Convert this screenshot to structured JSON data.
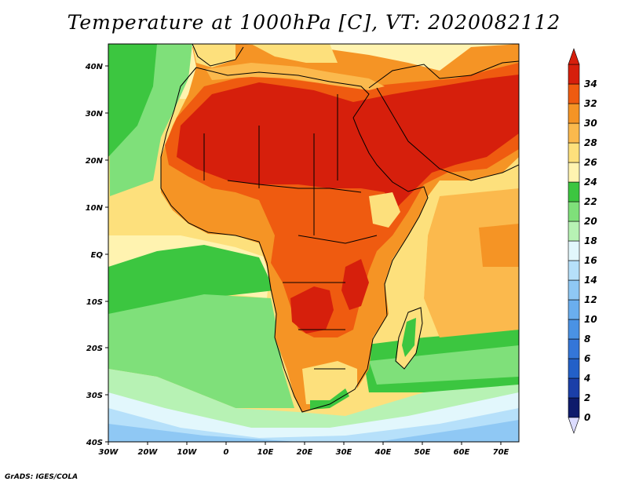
{
  "title": "Temperature at 1000hPa [C], VT: 2020082112",
  "credit": "GrADS: IGES/COLA",
  "map": {
    "region": "Africa",
    "lon_range": [
      -30,
      75
    ],
    "lat_range": [
      -40,
      45
    ],
    "lat_ticks": [
      "40N",
      "30N",
      "20N",
      "10N",
      "EQ",
      "10S",
      "20S",
      "30S",
      "40S"
    ],
    "lon_ticks": [
      "30W",
      "20W",
      "10W",
      "0",
      "10E",
      "20E",
      "30E",
      "40E",
      "50E",
      "60E",
      "70E"
    ]
  },
  "colorbar": {
    "levels": [
      "0",
      "2",
      "4",
      "6",
      "8",
      "10",
      "12",
      "14",
      "16",
      "18",
      "20",
      "22",
      "24",
      "26",
      "28",
      "30",
      "32",
      "34"
    ],
    "colors": [
      "#0e1b6b",
      "#1b3fa8",
      "#2360c8",
      "#3476d8",
      "#4a92e4",
      "#6aaeee",
      "#8fc8f4",
      "#b6e0fa",
      "#e2f7fc",
      "#b7f2b4",
      "#7fe07a",
      "#3cc640",
      "#fff3b0",
      "#fde07c",
      "#fbb94d",
      "#f59425",
      "#ef5b10",
      "#d61f0c"
    ],
    "under_color": "#dcdcff",
    "over_color": "#d61f0c"
  }
}
